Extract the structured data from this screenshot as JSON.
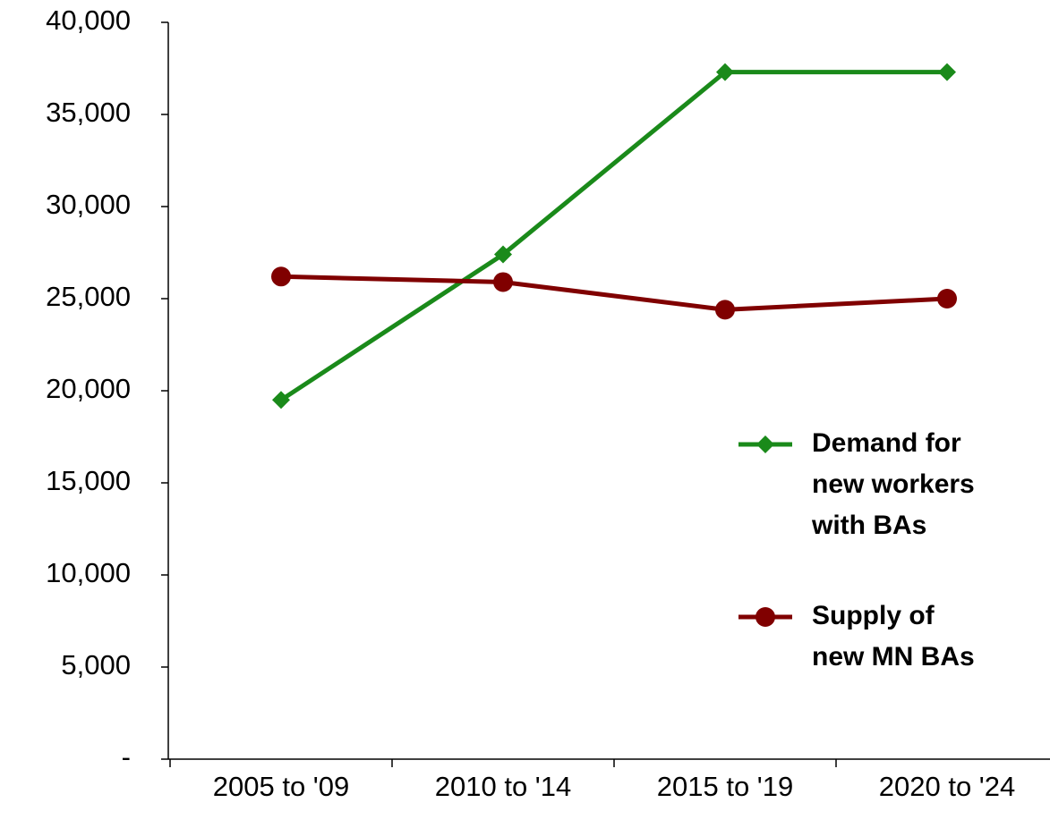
{
  "chart_data": {
    "type": "line",
    "categories": [
      "2005 to '09",
      "2010 to '14",
      "2015 to '19",
      "2020 to '24"
    ],
    "series": [
      {
        "name": "Demand for new workers with BAs",
        "color": "#1a8a1a",
        "marker": "diamond",
        "values": [
          19500,
          27400,
          37300,
          37300
        ]
      },
      {
        "name": "Supply of new MN BAs",
        "color": "#800000",
        "marker": "circle",
        "values": [
          26200,
          25900,
          24400,
          25000
        ]
      }
    ],
    "ylim": [
      0,
      40000
    ],
    "yticks": [
      {
        "value": 0,
        "label": "-"
      },
      {
        "value": 5000,
        "label": "5,000"
      },
      {
        "value": 10000,
        "label": "10,000"
      },
      {
        "value": 15000,
        "label": "15,000"
      },
      {
        "value": 20000,
        "label": "20,000"
      },
      {
        "value": 25000,
        "label": "25,000"
      },
      {
        "value": 30000,
        "label": "30,000"
      },
      {
        "value": 35000,
        "label": "35,000"
      },
      {
        "value": 40000,
        "label": "40,000"
      }
    ],
    "grid": false
  }
}
